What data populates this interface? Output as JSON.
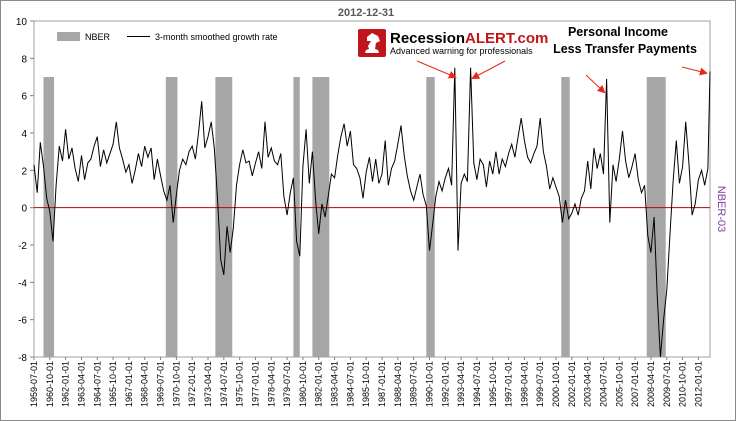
{
  "chart_data": {
    "type": "line",
    "title": "2012-12-31",
    "legend": [
      {
        "name": "NBER",
        "kind": "recession-band",
        "color": "#a6a6a6"
      },
      {
        "name": "3-month smoothed growth rate",
        "kind": "line",
        "color": "#000000"
      }
    ],
    "legend_placement": "top-left",
    "ylim": [
      -8,
      10
    ],
    "yticks": [
      "-8",
      "-6",
      "-4",
      "-2",
      "0",
      "2",
      "4",
      "6",
      "8",
      "10"
    ],
    "x_range": [
      "1959-07-01",
      "2012-12-01"
    ],
    "xtick_labels": [
      "1959-07-01",
      "1960-10-01",
      "1962-01-01",
      "1963-04-01",
      "1964-07-01",
      "1965-10-01",
      "1967-01-01",
      "1968-04-01",
      "1969-07-01",
      "1970-10-01",
      "1972-01-01",
      "1973-04-01",
      "1974-07-01",
      "1975-10-01",
      "1977-01-01",
      "1978-04-01",
      "1979-07-01",
      "1980-10-01",
      "1982-01-01",
      "1983-04-01",
      "1984-07-01",
      "1985-10-01",
      "1987-01-01",
      "1988-04-01",
      "1989-07-01",
      "1990-10-01",
      "1992-01-01",
      "1993-04-01",
      "1994-07-01",
      "1995-10-01",
      "1997-01-01",
      "1998-04-01",
      "1999-07-01",
      "2000-10-01",
      "2002-01-01",
      "2003-04-01",
      "2004-07-01",
      "2005-10-01",
      "2007-01-01",
      "2008-04-01",
      "2009-07-01",
      "2010-10-01",
      "2012-01-01"
    ],
    "right_axis_label": "NBER-03",
    "zero_line_color": "#c00000",
    "recessions": [
      {
        "start": "1960-04-01",
        "end": "1961-02-01"
      },
      {
        "start": "1969-12-01",
        "end": "1970-11-01"
      },
      {
        "start": "1973-11-01",
        "end": "1975-03-01"
      },
      {
        "start": "1980-01-01",
        "end": "1980-07-01"
      },
      {
        "start": "1981-07-01",
        "end": "1982-11-01"
      },
      {
        "start": "1990-07-01",
        "end": "1991-03-01"
      },
      {
        "start": "2001-03-01",
        "end": "2001-11-01"
      },
      {
        "start": "2007-12-01",
        "end": "2009-06-01"
      }
    ],
    "series": [
      {
        "name": "3-month smoothed growth rate",
        "points": [
          [
            "1959-07-01",
            2.3
          ],
          [
            "1959-10-01",
            0.8
          ],
          [
            "1960-01-01",
            3.5
          ],
          [
            "1960-04-01",
            2.2
          ],
          [
            "1960-07-01",
            0.5
          ],
          [
            "1960-10-01",
            -0.2
          ],
          [
            "1961-01-01",
            -1.8
          ],
          [
            "1961-04-01",
            1.2
          ],
          [
            "1961-07-01",
            3.3
          ],
          [
            "1961-10-01",
            2.5
          ],
          [
            "1962-01-01",
            4.2
          ],
          [
            "1962-04-01",
            2.6
          ],
          [
            "1962-07-01",
            3.2
          ],
          [
            "1962-10-01",
            2.1
          ],
          [
            "1963-01-01",
            1.4
          ],
          [
            "1963-04-01",
            2.8
          ],
          [
            "1963-07-01",
            1.5
          ],
          [
            "1963-10-01",
            2.4
          ],
          [
            "1964-01-01",
            2.6
          ],
          [
            "1964-04-01",
            3.3
          ],
          [
            "1964-07-01",
            3.8
          ],
          [
            "1964-10-01",
            2.2
          ],
          [
            "1965-01-01",
            3.1
          ],
          [
            "1965-04-01",
            2.4
          ],
          [
            "1965-10-01",
            3.4
          ],
          [
            "1966-01-01",
            4.6
          ],
          [
            "1966-04-01",
            3.2
          ],
          [
            "1966-07-01",
            2.6
          ],
          [
            "1966-10-01",
            1.9
          ],
          [
            "1967-01-01",
            2.3
          ],
          [
            "1967-04-01",
            1.3
          ],
          [
            "1967-07-01",
            2.0
          ],
          [
            "1967-10-01",
            2.9
          ],
          [
            "1968-01-01",
            2.2
          ],
          [
            "1968-04-01",
            3.3
          ],
          [
            "1968-07-01",
            2.7
          ],
          [
            "1968-10-01",
            3.2
          ],
          [
            "1969-01-01",
            1.5
          ],
          [
            "1969-04-01",
            2.6
          ],
          [
            "1969-07-01",
            1.7
          ],
          [
            "1969-10-01",
            0.9
          ],
          [
            "1970-01-01",
            0.4
          ],
          [
            "1970-04-01",
            1.2
          ],
          [
            "1970-07-01",
            -0.8
          ],
          [
            "1970-10-01",
            0.7
          ],
          [
            "1971-01-01",
            2.0
          ],
          [
            "1971-04-01",
            2.6
          ],
          [
            "1971-07-01",
            2.3
          ],
          [
            "1971-10-01",
            3.0
          ],
          [
            "1972-01-01",
            3.3
          ],
          [
            "1972-04-01",
            2.6
          ],
          [
            "1972-07-01",
            4.0
          ],
          [
            "1972-10-01",
            5.7
          ],
          [
            "1973-01-01",
            3.2
          ],
          [
            "1973-04-01",
            3.8
          ],
          [
            "1973-07-01",
            4.6
          ],
          [
            "1973-10-01",
            3.2
          ],
          [
            "1974-01-01",
            0.5
          ],
          [
            "1974-04-01",
            -2.8
          ],
          [
            "1974-07-01",
            -3.6
          ],
          [
            "1974-10-01",
            -1.0
          ],
          [
            "1975-01-01",
            -2.4
          ],
          [
            "1975-04-01",
            -1.1
          ],
          [
            "1975-07-01",
            1.2
          ],
          [
            "1975-10-01",
            2.3
          ],
          [
            "1976-01-01",
            3.1
          ],
          [
            "1976-04-01",
            2.4
          ],
          [
            "1976-07-01",
            2.5
          ],
          [
            "1976-10-01",
            1.7
          ],
          [
            "1977-01-01",
            2.4
          ],
          [
            "1977-04-01",
            3.0
          ],
          [
            "1977-07-01",
            2.1
          ],
          [
            "1977-10-01",
            4.6
          ],
          [
            "1978-01-01",
            2.7
          ],
          [
            "1978-04-01",
            3.2
          ],
          [
            "1978-07-01",
            2.5
          ],
          [
            "1978-10-01",
            2.3
          ],
          [
            "1979-01-01",
            2.9
          ],
          [
            "1979-04-01",
            0.6
          ],
          [
            "1979-07-01",
            -0.4
          ],
          [
            "1979-10-01",
            0.8
          ],
          [
            "1980-01-01",
            1.6
          ],
          [
            "1980-04-01",
            -1.8
          ],
          [
            "1980-07-01",
            -2.6
          ],
          [
            "1980-10-01",
            2.2
          ],
          [
            "1981-01-01",
            4.2
          ],
          [
            "1981-04-01",
            1.3
          ],
          [
            "1981-07-01",
            3.0
          ],
          [
            "1981-10-01",
            0.4
          ],
          [
            "1982-01-01",
            -1.4
          ],
          [
            "1982-04-01",
            0.2
          ],
          [
            "1982-07-01",
            -0.5
          ],
          [
            "1982-10-01",
            0.6
          ],
          [
            "1983-01-01",
            1.8
          ],
          [
            "1983-04-01",
            1.6
          ],
          [
            "1983-07-01",
            2.8
          ],
          [
            "1983-10-01",
            3.8
          ],
          [
            "1984-01-01",
            4.5
          ],
          [
            "1984-04-01",
            3.3
          ],
          [
            "1984-07-01",
            4.1
          ],
          [
            "1984-10-01",
            2.3
          ],
          [
            "1985-01-01",
            2.1
          ],
          [
            "1985-04-01",
            1.6
          ],
          [
            "1985-07-01",
            0.5
          ],
          [
            "1985-10-01",
            1.9
          ],
          [
            "1986-01-01",
            2.7
          ],
          [
            "1986-04-01",
            1.4
          ],
          [
            "1986-07-01",
            2.6
          ],
          [
            "1986-10-01",
            1.3
          ],
          [
            "1987-01-01",
            1.8
          ],
          [
            "1987-04-01",
            3.6
          ],
          [
            "1987-07-01",
            1.2
          ],
          [
            "1987-10-01",
            2.1
          ],
          [
            "1988-01-01",
            2.5
          ],
          [
            "1988-04-01",
            3.4
          ],
          [
            "1988-07-01",
            4.4
          ],
          [
            "1988-10-01",
            2.8
          ],
          [
            "1989-01-01",
            1.7
          ],
          [
            "1989-04-01",
            0.9
          ],
          [
            "1989-07-01",
            0.4
          ],
          [
            "1989-10-01",
            1.1
          ],
          [
            "1990-01-01",
            1.8
          ],
          [
            "1990-04-01",
            0.7
          ],
          [
            "1990-07-01",
            0.1
          ],
          [
            "1990-10-01",
            -2.3
          ],
          [
            "1991-01-01",
            -0.9
          ],
          [
            "1991-04-01",
            0.6
          ],
          [
            "1991-07-01",
            1.4
          ],
          [
            "1991-10-01",
            0.9
          ],
          [
            "1992-01-01",
            1.6
          ],
          [
            "1992-04-01",
            2.1
          ],
          [
            "1992-07-01",
            1.2
          ],
          [
            "1992-10-01",
            7.5
          ],
          [
            "1993-01-01",
            -2.3
          ],
          [
            "1993-04-01",
            1.3
          ],
          [
            "1993-07-01",
            1.8
          ],
          [
            "1993-10-01",
            1.4
          ],
          [
            "1994-01-01",
            7.5
          ],
          [
            "1994-04-01",
            2.4
          ],
          [
            "1994-07-01",
            1.5
          ],
          [
            "1994-10-01",
            2.6
          ],
          [
            "1995-01-01",
            2.3
          ],
          [
            "1995-04-01",
            1.1
          ],
          [
            "1995-07-01",
            2.5
          ],
          [
            "1995-10-01",
            1.8
          ],
          [
            "1996-01-01",
            3.0
          ],
          [
            "1996-04-01",
            1.8
          ],
          [
            "1996-07-01",
            2.6
          ],
          [
            "1996-10-01",
            2.2
          ],
          [
            "1997-01-01",
            2.9
          ],
          [
            "1997-04-01",
            3.4
          ],
          [
            "1997-07-01",
            2.7
          ],
          [
            "1997-10-01",
            3.8
          ],
          [
            "1998-01-01",
            4.8
          ],
          [
            "1998-04-01",
            3.6
          ],
          [
            "1998-07-01",
            2.7
          ],
          [
            "1998-10-01",
            2.4
          ],
          [
            "1999-01-01",
            2.9
          ],
          [
            "1999-04-01",
            3.3
          ],
          [
            "1999-07-01",
            4.8
          ],
          [
            "1999-10-01",
            3.0
          ],
          [
            "2000-01-01",
            2.2
          ],
          [
            "2000-04-01",
            1.0
          ],
          [
            "2000-07-01",
            1.6
          ],
          [
            "2000-10-01",
            1.1
          ],
          [
            "2001-01-01",
            0.6
          ],
          [
            "2001-04-01",
            -0.8
          ],
          [
            "2001-07-01",
            0.4
          ],
          [
            "2001-10-01",
            -0.6
          ],
          [
            "2002-01-01",
            -0.3
          ],
          [
            "2002-04-01",
            0.2
          ],
          [
            "2002-07-01",
            -0.4
          ],
          [
            "2002-10-01",
            0.5
          ],
          [
            "2003-01-01",
            0.9
          ],
          [
            "2003-04-01",
            2.5
          ],
          [
            "2003-07-01",
            1.0
          ],
          [
            "2003-10-01",
            3.2
          ],
          [
            "2004-01-01",
            2.1
          ],
          [
            "2004-04-01",
            2.9
          ],
          [
            "2004-07-01",
            1.8
          ],
          [
            "2004-10-01",
            6.9
          ],
          [
            "2005-01-01",
            -0.8
          ],
          [
            "2005-04-01",
            2.3
          ],
          [
            "2005-07-01",
            1.4
          ],
          [
            "2005-10-01",
            2.6
          ],
          [
            "2006-01-01",
            4.1
          ],
          [
            "2006-04-01",
            2.5
          ],
          [
            "2006-07-01",
            1.6
          ],
          [
            "2006-10-01",
            2.2
          ],
          [
            "2007-01-01",
            2.9
          ],
          [
            "2007-04-01",
            1.5
          ],
          [
            "2007-07-01",
            0.8
          ],
          [
            "2007-10-01",
            1.2
          ],
          [
            "2008-01-01",
            -1.5
          ],
          [
            "2008-04-01",
            -2.4
          ],
          [
            "2008-07-01",
            -0.5
          ],
          [
            "2008-10-01",
            -4.8
          ],
          [
            "2009-01-01",
            -8.0
          ],
          [
            "2009-04-01",
            -6.0
          ],
          [
            "2009-07-01",
            -4.4
          ],
          [
            "2009-10-01",
            -1.5
          ],
          [
            "2010-01-01",
            1.4
          ],
          [
            "2010-04-01",
            3.6
          ],
          [
            "2010-07-01",
            1.3
          ],
          [
            "2010-10-01",
            2.2
          ],
          [
            "2011-01-01",
            4.6
          ],
          [
            "2011-04-01",
            2.4
          ],
          [
            "2011-07-01",
            -0.4
          ],
          [
            "2011-10-01",
            0.2
          ],
          [
            "2012-01-01",
            1.5
          ],
          [
            "2012-04-01",
            2.0
          ],
          [
            "2012-07-01",
            1.2
          ],
          [
            "2012-10-01",
            2.1
          ],
          [
            "2012-12-01",
            7.3
          ]
        ]
      }
    ],
    "annotation": [
      "Personal Income",
      "Less Transfer Payments"
    ]
  },
  "brand": {
    "name_left": "Recession",
    "name_right": "ALERT.com",
    "tagline": "Advanced warning for professionals"
  }
}
